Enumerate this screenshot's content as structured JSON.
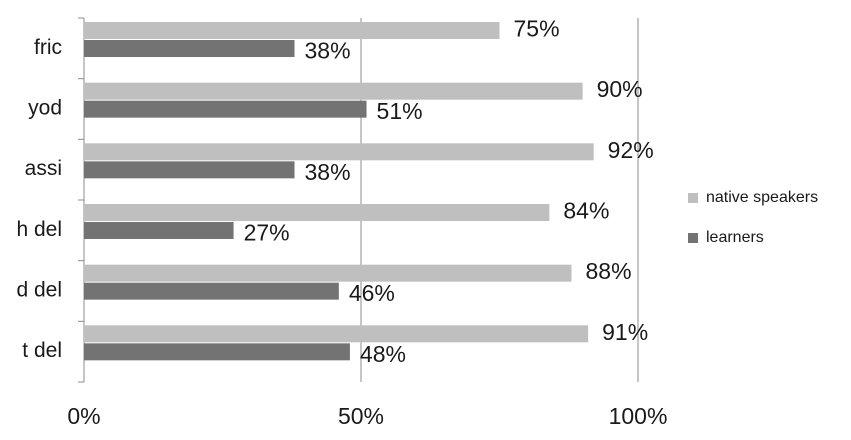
{
  "chart_data": {
    "type": "bar",
    "orientation": "horizontal",
    "categories": [
      "fric",
      "yod",
      "assi",
      "h del",
      "d del",
      "t del"
    ],
    "series": [
      {
        "name": "native speakers",
        "color": "#bfbfbf",
        "values": [
          75,
          90,
          92,
          84,
          88,
          91
        ],
        "value_labels": [
          "75%",
          "90%",
          "92%",
          "84%",
          "88%",
          "91%"
        ]
      },
      {
        "name": "learners",
        "color": "#737373",
        "values": [
          38,
          51,
          38,
          27,
          46,
          48
        ],
        "value_labels": [
          "38%",
          "51%",
          "38%",
          "27%",
          "46%",
          "48%"
        ]
      }
    ],
    "xlim": [
      0,
      100
    ],
    "xticks": [
      {
        "value": 0,
        "label": "0%"
      },
      {
        "value": 50,
        "label": "50%"
      },
      {
        "value": 100,
        "label": "100%"
      }
    ],
    "grid": true,
    "legend": "right"
  }
}
